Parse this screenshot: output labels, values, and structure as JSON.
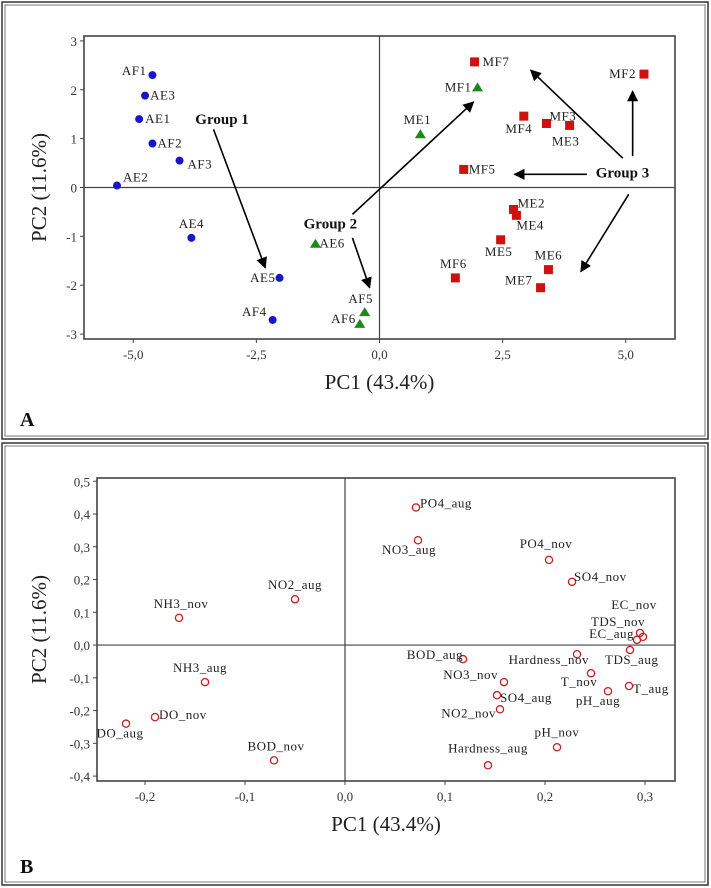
{
  "chart_data": [
    {
      "panel": "A",
      "type": "scatter",
      "xlabel": "PC1 (43.4%)",
      "ylabel": "PC2 (11.6%)",
      "xlim": [
        -6.0,
        6.0
      ],
      "ylim": [
        -3.1,
        3.1
      ],
      "xticks": [
        -5.0,
        -2.5,
        0.0,
        2.5,
        5.0
      ],
      "xtick_labels": [
        "-5,0",
        "-2,5",
        "0,0",
        "2,5",
        "5,0"
      ],
      "yticks": [
        3,
        2,
        1,
        0,
        -1,
        -2,
        -3
      ],
      "ytick_labels": [
        "3",
        "2",
        "1",
        "0",
        "-1",
        "-2",
        "-3"
      ],
      "grid": false,
      "zero_lines": true,
      "groups": [
        {
          "name": "Group 1",
          "marker": "circle",
          "color": "#1515cc",
          "points": [
            {
              "label": "AF1",
              "x": -4.61,
              "y": 2.3
            },
            {
              "label": "AE3",
              "x": -4.76,
              "y": 1.88
            },
            {
              "label": "AE1",
              "x": -4.88,
              "y": 1.4
            },
            {
              "label": "AF2",
              "x": -4.61,
              "y": 0.9
            },
            {
              "label": "AF3",
              "x": -4.06,
              "y": 0.55
            },
            {
              "label": "AE2",
              "x": -5.33,
              "y": 0.04
            },
            {
              "label": "AE4",
              "x": -3.82,
              "y": -1.03
            },
            {
              "label": "AE5",
              "x": -2.03,
              "y": -1.85
            },
            {
              "label": "AF4",
              "x": -2.17,
              "y": -2.71
            }
          ]
        },
        {
          "name": "Group 2",
          "marker": "triangle",
          "color": "#1a8a1a",
          "points": [
            {
              "label": "AE6",
              "x": -1.3,
              "y": -1.15
            },
            {
              "label": "AF5",
              "x": -0.3,
              "y": -2.55
            },
            {
              "label": "AF6",
              "x": -0.4,
              "y": -2.79
            },
            {
              "label": "ME1",
              "x": 0.83,
              "y": 1.09
            },
            {
              "label": "MF1",
              "x": 1.99,
              "y": 2.05
            }
          ]
        },
        {
          "name": "Group 3",
          "marker": "square",
          "color": "#cc1111",
          "points": [
            {
              "label": "MF7",
              "x": 1.93,
              "y": 2.57
            },
            {
              "label": "MF2",
              "x": 5.37,
              "y": 2.32
            },
            {
              "label": "MF4",
              "x": 2.93,
              "y": 1.46
            },
            {
              "label": "MF3",
              "x": 3.39,
              "y": 1.31
            },
            {
              "label": "ME3",
              "x": 3.86,
              "y": 1.27
            },
            {
              "label": "MF5",
              "x": 1.71,
              "y": 0.37
            },
            {
              "label": "ME2",
              "x": 2.72,
              "y": -0.45
            },
            {
              "label": "ME4",
              "x": 2.78,
              "y": -0.57
            },
            {
              "label": "ME5",
              "x": 2.46,
              "y": -1.07
            },
            {
              "label": "ME6",
              "x": 3.43,
              "y": -1.68
            },
            {
              "label": "ME7",
              "x": 3.27,
              "y": -2.05
            },
            {
              "label": "MF6",
              "x": 1.54,
              "y": -1.85
            }
          ]
        }
      ],
      "annotations": [
        {
          "text": "Group 1",
          "x": -3.74,
          "y": 1.4
        },
        {
          "text": "Group 2",
          "x": -1.54,
          "y": -0.74
        },
        {
          "text": "Group 3",
          "x": 4.39,
          "y": 0.31
        }
      ],
      "arrows": [
        {
          "from": [
            -3.37,
            1.19
          ],
          "to": [
            -2.32,
            -1.64
          ]
        },
        {
          "from": [
            -0.55,
            -0.55
          ],
          "to": [
            1.91,
            1.75
          ]
        },
        {
          "from": [
            -0.55,
            -1.03
          ],
          "to": [
            -0.2,
            -2.05
          ]
        },
        {
          "from": [
            4.94,
            0.6
          ],
          "to": [
            3.07,
            2.4
          ]
        },
        {
          "from": [
            5.14,
            0.64
          ],
          "to": [
            5.14,
            1.97
          ]
        },
        {
          "from": [
            4.21,
            0.27
          ],
          "to": [
            2.74,
            0.27
          ]
        },
        {
          "from": [
            5.06,
            -0.14
          ],
          "to": [
            4.09,
            -1.72
          ]
        }
      ]
    },
    {
      "panel": "B",
      "type": "scatter",
      "xlabel": "PC1 (43.4%)",
      "ylabel": "PC2 (11.6%)",
      "xlim": [
        -0.248,
        0.33
      ],
      "ylim": [
        -0.415,
        0.51
      ],
      "xticks": [
        -0.2,
        -0.1,
        0.0,
        0.1,
        0.2,
        0.3
      ],
      "xtick_labels": [
        "-0,2",
        "-0,1",
        "0,0",
        "0,1",
        "0,2",
        "0,3"
      ],
      "yticks": [
        0.5,
        0.4,
        0.3,
        0.2,
        0.1,
        0.0,
        -0.1,
        -0.2,
        -0.3,
        -0.4
      ],
      "ytick_labels": [
        "0,5",
        "0,4",
        "0,3",
        "0,2",
        "0,1",
        "0,0",
        "-0,1",
        "-0,2",
        "-0,3",
        "-0,4"
      ],
      "grid": false,
      "zero_lines": true,
      "marker": "open-circle",
      "color": "#c42020",
      "points": [
        {
          "label": "NO2_aug",
          "x": -0.05,
          "y": 0.14
        },
        {
          "label": "NH3_nov",
          "x": -0.166,
          "y": 0.083
        },
        {
          "label": "NH3_aug",
          "x": -0.14,
          "y": -0.113
        },
        {
          "label": "DO_nov",
          "x": -0.19,
          "y": -0.22
        },
        {
          "label": "DO_aug",
          "x": -0.219,
          "y": -0.24
        },
        {
          "label": "BOD_nov",
          "x": -0.071,
          "y": -0.352
        },
        {
          "label": "PO4_aug",
          "x": 0.071,
          "y": 0.42
        },
        {
          "label": "NO3_aug",
          "x": 0.073,
          "y": 0.32
        },
        {
          "label": "PO4_nov",
          "x": 0.204,
          "y": 0.26
        },
        {
          "label": "SO4_nov",
          "x": 0.227,
          "y": 0.193
        },
        {
          "label": "EC_nov",
          "x": 0.295,
          "y": 0.037
        },
        {
          "label": "TDS_nov",
          "x": 0.298,
          "y": 0.025
        },
        {
          "label": "EC_aug",
          "x": 0.292,
          "y": 0.016
        },
        {
          "label": "TDS_aug",
          "x": 0.285,
          "y": -0.015
        },
        {
          "label": "Hardness_nov",
          "x": 0.232,
          "y": -0.028
        },
        {
          "label": "BOD_aug",
          "x": 0.118,
          "y": -0.043
        },
        {
          "label": "T_nov",
          "x": 0.246,
          "y": -0.086
        },
        {
          "label": "T_aug",
          "x": 0.284,
          "y": -0.125
        },
        {
          "label": "pH_aug",
          "x": 0.263,
          "y": -0.141
        },
        {
          "label": "NO3_nov",
          "x": 0.159,
          "y": -0.113
        },
        {
          "label": "SO4_aug",
          "x": 0.152,
          "y": -0.153
        },
        {
          "label": "NO2_nov",
          "x": 0.155,
          "y": -0.196
        },
        {
          "label": "pH_nov",
          "x": 0.212,
          "y": -0.312
        },
        {
          "label": "Hardness_aug",
          "x": 0.143,
          "y": -0.367
        }
      ]
    }
  ]
}
